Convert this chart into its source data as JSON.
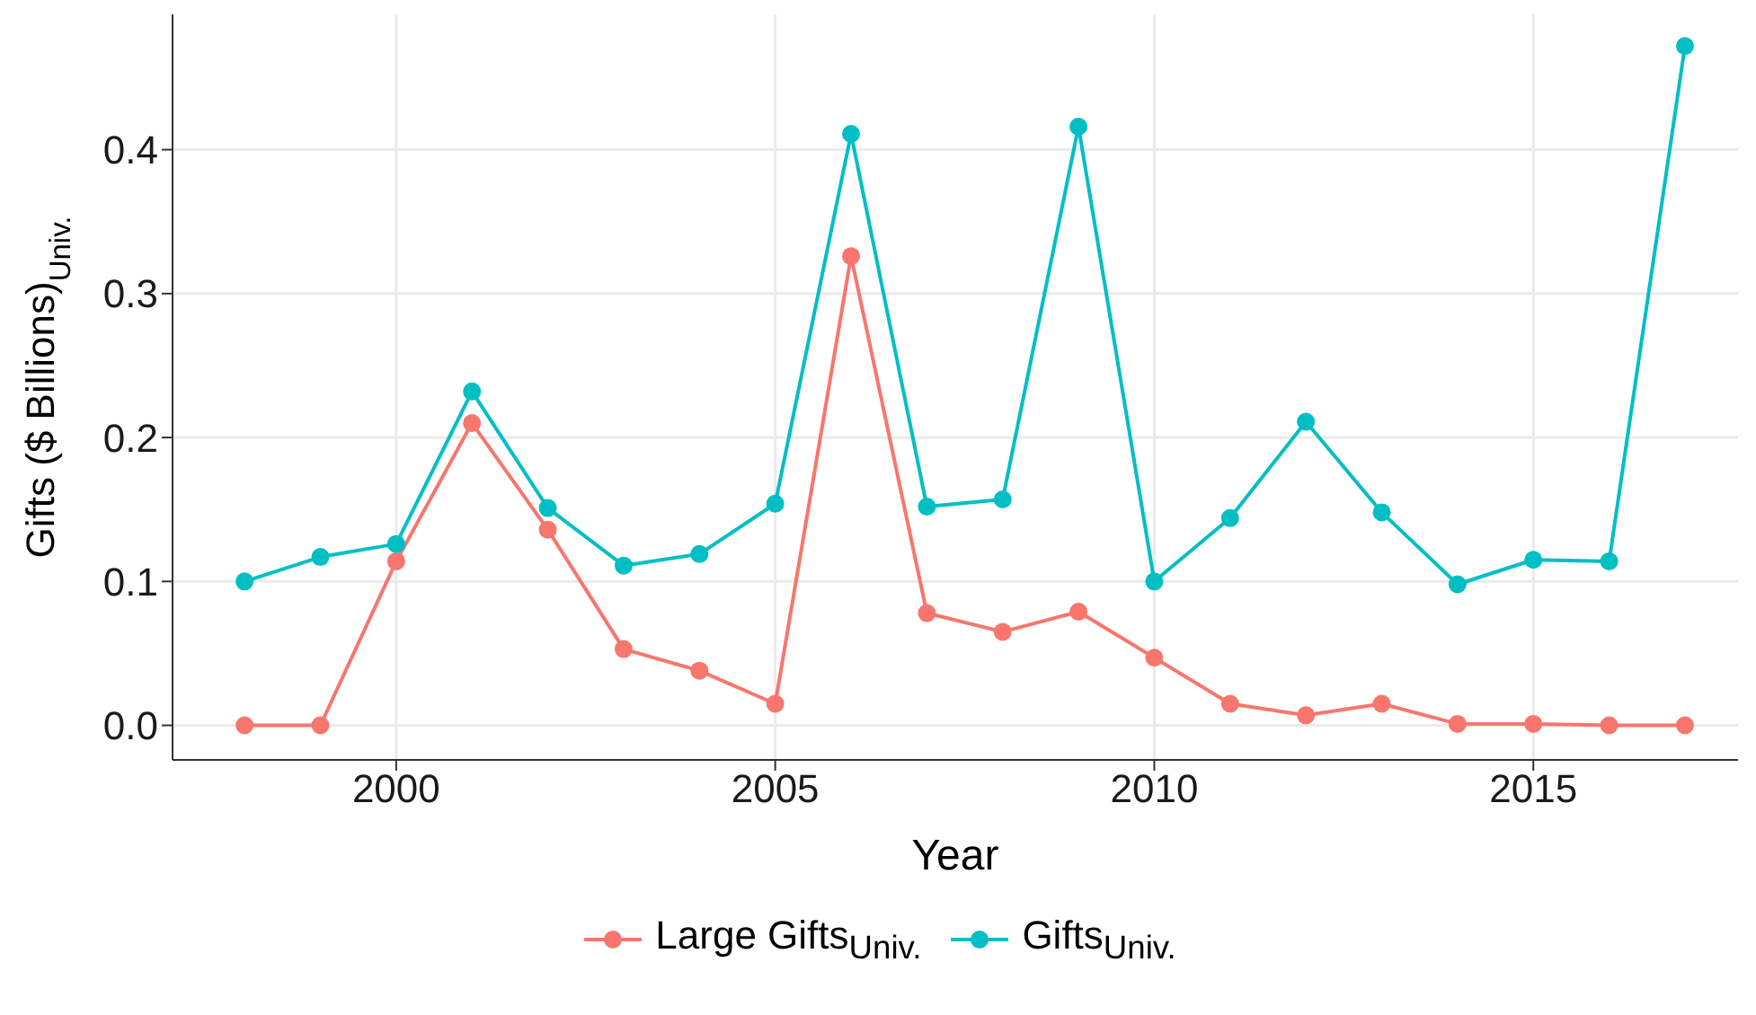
{
  "chart_data": {
    "type": "line",
    "xlabel": "Year",
    "ylabel": "Gifts ($ Billions)$_{Univ.}$",
    "x": [
      1998,
      1999,
      2000,
      2001,
      2002,
      2003,
      2004,
      2005,
      2006,
      2007,
      2008,
      2009,
      2010,
      2011,
      2012,
      2013,
      2014,
      2015,
      2016,
      2017
    ],
    "series": [
      {
        "name": "Large Gifts$_{Univ.}$",
        "color": "#f8766d",
        "values": [
          0,
          0,
          0.114,
          0.21,
          0.136,
          0.053,
          0.038,
          0.015,
          0.326,
          0.078,
          0.065,
          0.079,
          0.047,
          0.015,
          0.007,
          0.015,
          0.001,
          0.001,
          0,
          0
        ]
      },
      {
        "name": "Gifts$_{Univ.}$",
        "color": "#00bfc4",
        "values": [
          0.1,
          0.117,
          0.126,
          0.232,
          0.151,
          0.111,
          0.119,
          0.154,
          0.411,
          0.152,
          0.157,
          0.416,
          0.1,
          0.144,
          0.211,
          0.148,
          0.098,
          0.115,
          0.114,
          0.472
        ]
      }
    ],
    "xlim": [
      1997.05,
      2017.7
    ],
    "xticks": [
      2000,
      2005,
      2010,
      2015
    ],
    "ylim": [
      -0.024,
      0.494
    ],
    "yticks": [
      {
        "value": 0,
        "label": "0.0"
      },
      {
        "value": 0.1,
        "label": "0.1"
      },
      {
        "value": 0.2,
        "label": "0.2"
      },
      {
        "value": 0.3,
        "label": "0.3"
      },
      {
        "value": 0.4,
        "label": "0.4"
      }
    ],
    "grid": true,
    "legend": "bottom",
    "marker": "circle",
    "line_style": "solid"
  }
}
